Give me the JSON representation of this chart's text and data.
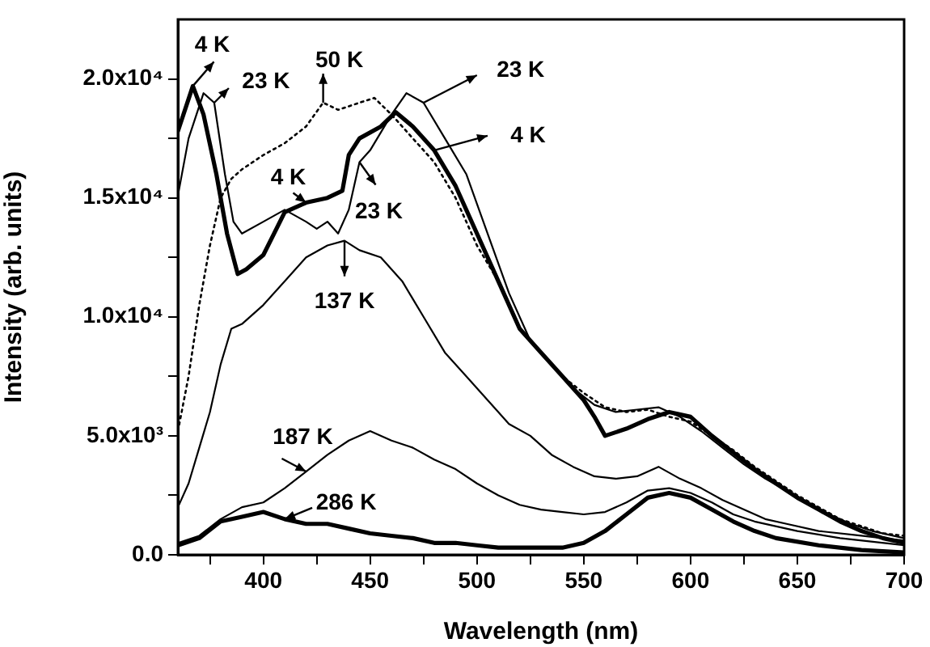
{
  "chart_data": {
    "type": "line",
    "xlabel": "Wavelength (nm)",
    "ylabel": "Intensity (arb. units)",
    "xlim": [
      360,
      700
    ],
    "xticks": [
      {
        "value": 375,
        "label": null
      },
      400,
      {
        "value": 425,
        "label": null
      },
      450,
      {
        "value": 475,
        "label": null
      },
      500,
      {
        "value": 525,
        "label": null
      },
      550,
      {
        "value": 575,
        "label": null
      },
      600,
      {
        "value": 625,
        "label": null
      },
      650,
      {
        "value": 675,
        "label": null
      },
      700
    ],
    "ylim": [
      0,
      22500
    ],
    "yticks": [
      {
        "value": 0,
        "label": "0.0"
      },
      {
        "value": 2500,
        "label": null
      },
      {
        "value": 5000,
        "label": "5.0x10³"
      },
      {
        "value": 7500,
        "label": null
      },
      {
        "value": 10000,
        "label": "1.0x10⁴"
      },
      {
        "value": 12500,
        "label": null
      },
      {
        "value": 15000,
        "label": "1.5x10⁴"
      },
      {
        "value": 17500,
        "label": null
      },
      {
        "value": 20000,
        "label": "2.0x10⁴"
      }
    ],
    "grid": false,
    "legend": false,
    "marker": "none",
    "series": [
      {
        "color": "#000000",
        "line_style": "solid",
        "x": [
          360,
          367,
          372,
          378,
          383,
          388,
          392,
          400,
          405,
          410,
          420,
          430,
          437,
          440,
          445,
          455,
          462,
          470,
          480,
          490,
          500,
          510,
          520,
          530,
          540,
          550,
          555,
          560,
          570,
          580,
          590,
          600,
          610,
          620,
          630,
          640,
          650,
          660,
          670,
          680,
          690,
          700
        ],
        "values": [
          17800,
          19700,
          18500,
          16000,
          13500,
          11800,
          12000,
          12600,
          13500,
          14400,
          14800,
          15000,
          15300,
          16800,
          17500,
          18000,
          18600,
          18000,
          17000,
          15500,
          13500,
          11500,
          9500,
          8500,
          7500,
          6500,
          5800,
          5000,
          5300,
          5700,
          6000,
          5800,
          5000,
          4300,
          3600,
          3000,
          2400,
          1900,
          1400,
          1000,
          700,
          500
        ]
      },
      {
        "color": "#000000",
        "line_style": "solid",
        "x": [
          360,
          365,
          372,
          377,
          382,
          386,
          390,
          400,
          410,
          420,
          425,
          430,
          435,
          440,
          445,
          450,
          460,
          467,
          475,
          485,
          495,
          505,
          515,
          525,
          535,
          545,
          555,
          565,
          575,
          585,
          595,
          605,
          615,
          625,
          635,
          645,
          655,
          665,
          675,
          685,
          700
        ],
        "values": [
          15100,
          17500,
          19400,
          19000,
          16000,
          14000,
          13500,
          14000,
          14500,
          14000,
          13700,
          14000,
          13500,
          14500,
          16500,
          17000,
          18500,
          19400,
          19000,
          17500,
          16000,
          13500,
          11000,
          9000,
          8000,
          7000,
          6300,
          6000,
          6100,
          6200,
          5800,
          5200,
          4500,
          3800,
          3200,
          2700,
          2200,
          1700,
          1300,
          1000,
          700
        ]
      },
      {
        "color": "#000000",
        "line_style": "dotted",
        "x": [
          360,
          365,
          370,
          375,
          380,
          385,
          390,
          400,
          410,
          420,
          428,
          435,
          445,
          452,
          460,
          470,
          480,
          490,
          500,
          510,
          520,
          530,
          540,
          550,
          560,
          570,
          580,
          590,
          600,
          610,
          620,
          630,
          640,
          650,
          660,
          670,
          680,
          690,
          700
        ],
        "values": [
          5200,
          7500,
          10500,
          13000,
          15000,
          15800,
          16200,
          16800,
          17300,
          18000,
          19000,
          18700,
          19000,
          19200,
          18500,
          17500,
          16500,
          15000,
          13000,
          11500,
          9500,
          8500,
          7500,
          6800,
          6200,
          6000,
          6100,
          5800,
          5600,
          5000,
          4400,
          3700,
          3100,
          2500,
          2000,
          1500,
          1200,
          900,
          800
        ]
      },
      {
        "color": "#000000",
        "line_style": "solid",
        "x": [
          360,
          365,
          370,
          375,
          380,
          385,
          390,
          400,
          410,
          420,
          430,
          438,
          445,
          455,
          465,
          475,
          485,
          495,
          505,
          515,
          525,
          535,
          545,
          555,
          565,
          575,
          585,
          595,
          605,
          615,
          625,
          635,
          645,
          660,
          680,
          700
        ],
        "values": [
          2000,
          3000,
          4500,
          6000,
          8000,
          9500,
          9700,
          10500,
          11500,
          12500,
          13000,
          13200,
          12800,
          12500,
          11500,
          10000,
          8500,
          7500,
          6500,
          5500,
          5000,
          4200,
          3700,
          3300,
          3200,
          3300,
          3700,
          3200,
          2800,
          2300,
          1900,
          1500,
          1300,
          1000,
          800,
          600
        ]
      },
      {
        "color": "#000000",
        "line_style": "solid",
        "x": [
          360,
          370,
          380,
          390,
          400,
          410,
          420,
          430,
          440,
          450,
          460,
          470,
          480,
          490,
          500,
          510,
          520,
          530,
          540,
          550,
          560,
          570,
          580,
          590,
          600,
          610,
          620,
          630,
          650,
          670,
          700
        ],
        "values": [
          500,
          800,
          1500,
          2000,
          2200,
          2800,
          3500,
          4200,
          4800,
          5200,
          4800,
          4500,
          4000,
          3600,
          3000,
          2500,
          2100,
          1900,
          1800,
          1700,
          1800,
          2200,
          2700,
          2800,
          2600,
          2200,
          1700,
          1400,
          1000,
          700,
          400
        ]
      },
      {
        "color": "#000000",
        "line_style": "solid",
        "x": [
          360,
          370,
          380,
          390,
          400,
          410,
          420,
          430,
          440,
          450,
          460,
          470,
          480,
          490,
          500,
          510,
          520,
          530,
          540,
          550,
          560,
          570,
          580,
          590,
          600,
          610,
          620,
          630,
          640,
          660,
          680,
          700
        ],
        "values": [
          400,
          700,
          1400,
          1600,
          1800,
          1500,
          1300,
          1300,
          1100,
          900,
          800,
          700,
          500,
          500,
          400,
          300,
          300,
          300,
          300,
          500,
          1000,
          1700,
          2400,
          2600,
          2400,
          1900,
          1400,
          1000,
          700,
          400,
          200,
          100
        ]
      }
    ],
    "annotations": [
      {
        "text": "4 K",
        "x": 367,
        "y": 19700
      },
      {
        "text": "23 K",
        "x": 377,
        "y": 19000
      },
      {
        "text": "50 K",
        "x": 428,
        "y": 19000
      },
      {
        "text": "23 K",
        "x": 475,
        "y": 19000
      },
      {
        "text": "4 K",
        "x": 480,
        "y": 17000
      },
      {
        "text": "4 K",
        "x": 420,
        "y": 14800
      },
      {
        "text": "23 K",
        "x": 445,
        "y": 16500
      },
      {
        "text": "137 K",
        "x": 438,
        "y": 13200
      },
      {
        "text": "187 K",
        "x": 420,
        "y": 3500
      },
      {
        "text": "286 K",
        "x": 410,
        "y": 1500
      }
    ]
  }
}
